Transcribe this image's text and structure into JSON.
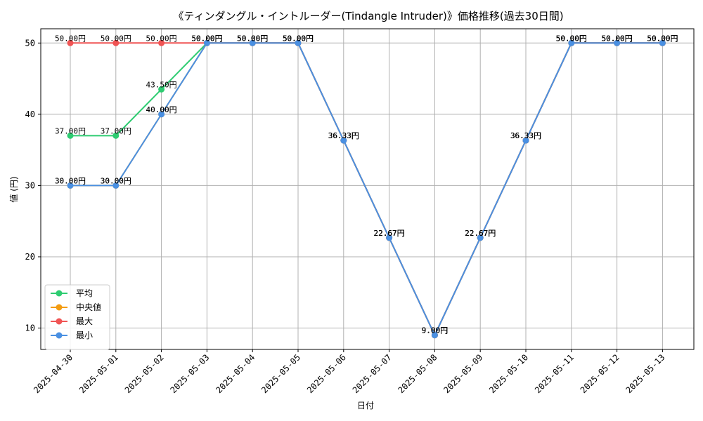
{
  "chart_data": {
    "type": "line",
    "title": "《ティンダングル・イントルーダー(Tindangle Intruder)》価格推移(過去30日間)",
    "xlabel": "日付",
    "ylabel": "値 (円)",
    "ylim": [
      7,
      52
    ],
    "yticks": [
      10,
      20,
      30,
      40,
      50
    ],
    "categories": [
      "2025-04-30",
      "2025-05-01",
      "2025-05-02",
      "2025-05-03",
      "2025-05-04",
      "2025-05-05",
      "2025-05-06",
      "2025-05-07",
      "2025-05-08",
      "2025-05-09",
      "2025-05-10",
      "2025-05-11",
      "2025-05-12",
      "2025-05-13"
    ],
    "grid": true,
    "legend_position": "bottom-left",
    "label_suffix": "円",
    "series": [
      {
        "name": "平均",
        "color": "#2ecc71",
        "values": [
          37.0,
          37.0,
          43.5,
          50.0,
          50.0,
          50.0,
          36.33,
          22.67,
          9.0,
          22.67,
          36.33,
          50.0,
          50.0,
          50.0
        ]
      },
      {
        "name": "中央値",
        "color": "#f39c12",
        "values": [
          30.0,
          30.0,
          40.0,
          50.0,
          50.0,
          50.0,
          36.33,
          22.67,
          9.0,
          22.67,
          36.33,
          50.0,
          50.0,
          50.0
        ]
      },
      {
        "name": "最大",
        "color": "#f05454",
        "values": [
          50.0,
          50.0,
          50.0,
          50.0,
          50.0,
          50.0,
          36.33,
          22.67,
          9.0,
          22.67,
          36.33,
          50.0,
          50.0,
          50.0
        ]
      },
      {
        "name": "最小",
        "color": "#4a90e2",
        "values": [
          30.0,
          30.0,
          40.0,
          50.0,
          50.0,
          50.0,
          36.33,
          22.67,
          9.0,
          22.67,
          36.33,
          50.0,
          50.0,
          50.0
        ]
      }
    ]
  }
}
